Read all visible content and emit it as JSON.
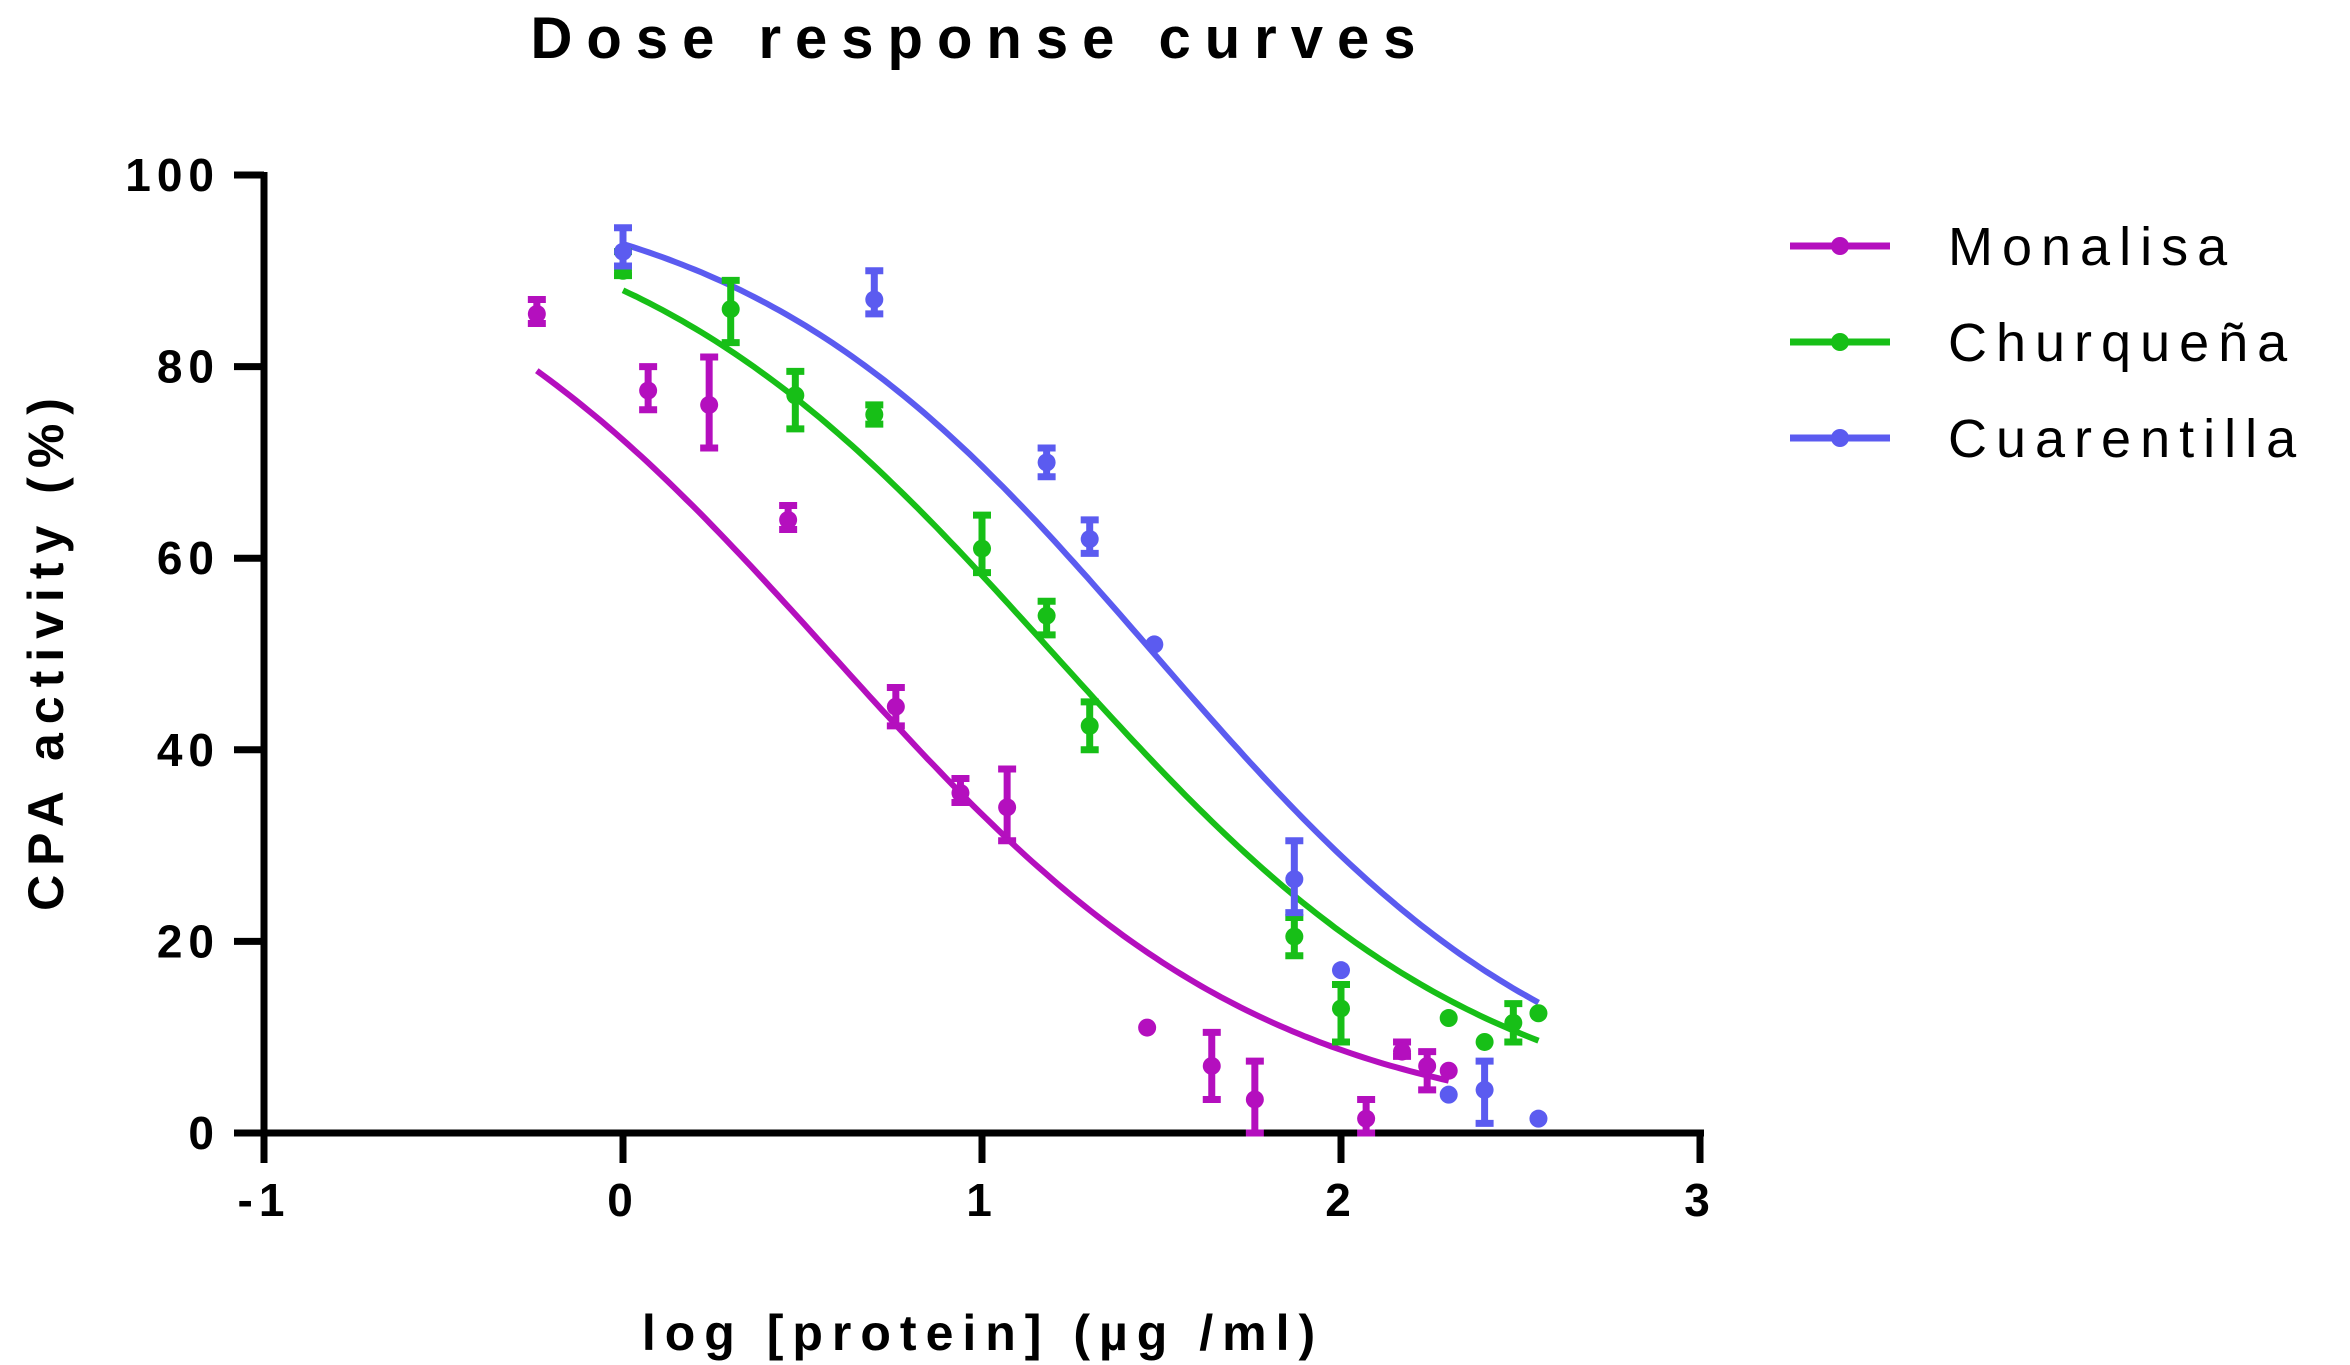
{
  "chart_data": {
    "type": "scatter",
    "title": "Dose response curves",
    "xlabel": "log [protein] (µg /ml)",
    "ylabel": "CPA activity (%)",
    "xlim": [
      -1,
      3
    ],
    "ylim": [
      0,
      100
    ],
    "xticks": [
      "-1",
      "0",
      "1",
      "2",
      "3"
    ],
    "yticks": [
      "0",
      "20",
      "40",
      "60",
      "80",
      "100"
    ],
    "grid": false,
    "legend_position": "top-right",
    "series": [
      {
        "name": "Monalisa",
        "color": "#b40fbe",
        "points": [
          {
            "x": -0.24,
            "y": 85.5,
            "lo": 84.5,
            "hi": 87
          },
          {
            "x": 0.07,
            "y": 77.5,
            "lo": 75.5,
            "hi": 80
          },
          {
            "x": 0.24,
            "y": 76,
            "lo": 71.5,
            "hi": 81
          },
          {
            "x": 0.46,
            "y": 64,
            "lo": 63,
            "hi": 65.5
          },
          {
            "x": 0.76,
            "y": 44.5,
            "lo": 42.5,
            "hi": 46.5
          },
          {
            "x": 0.94,
            "y": 35.5,
            "lo": 34.5,
            "hi": 37
          },
          {
            "x": 1.07,
            "y": 34,
            "lo": 30.5,
            "hi": 38
          },
          {
            "x": 1.46,
            "y": 11,
            "lo": 11,
            "hi": 11
          },
          {
            "x": 1.64,
            "y": 7,
            "lo": 3.5,
            "hi": 10.5
          },
          {
            "x": 1.76,
            "y": 3.5,
            "lo": 0,
            "hi": 7.5
          },
          {
            "x": 2.07,
            "y": 1.5,
            "lo": 0,
            "hi": 3.5
          },
          {
            "x": 2.17,
            "y": 8.5,
            "lo": 8,
            "hi": 9.5
          },
          {
            "x": 2.24,
            "y": 7,
            "lo": 4.5,
            "hi": 8.5
          },
          {
            "x": 2.3,
            "y": 6.5,
            "lo": 6.5,
            "hi": 6.5
          }
        ],
        "curve": {
          "top": 100,
          "bottom": 0,
          "log_ic50": 0.58,
          "hill": 0.72,
          "x_from": -0.24,
          "x_to": 2.3
        }
      },
      {
        "name": "Churqueña",
        "color": "#17bf17",
        "points": [
          {
            "x": 0.0,
            "y": 90,
            "lo": 89.5,
            "hi": 92
          },
          {
            "x": 0.3,
            "y": 86,
            "lo": 82.5,
            "hi": 89
          },
          {
            "x": 0.48,
            "y": 77,
            "lo": 73.5,
            "hi": 79.5
          },
          {
            "x": 0.7,
            "y": 75,
            "lo": 74,
            "hi": 76
          },
          {
            "x": 1.0,
            "y": 61,
            "lo": 58.5,
            "hi": 64.5
          },
          {
            "x": 1.18,
            "y": 54,
            "lo": 52,
            "hi": 55.5
          },
          {
            "x": 1.3,
            "y": 42.5,
            "lo": 40,
            "hi": 45
          },
          {
            "x": 1.87,
            "y": 20.5,
            "lo": 18.5,
            "hi": 22.5
          },
          {
            "x": 2.0,
            "y": 13,
            "lo": 9.5,
            "hi": 15.5
          },
          {
            "x": 2.3,
            "y": 12,
            "lo": 12,
            "hi": 12
          },
          {
            "x": 2.4,
            "y": 9.5,
            "lo": 9.5,
            "hi": 9.5
          },
          {
            "x": 2.48,
            "y": 11.5,
            "lo": 9.5,
            "hi": 13.5
          },
          {
            "x": 2.55,
            "y": 12.5,
            "lo": 12.5,
            "hi": 12.5
          }
        ],
        "curve": {
          "top": 100,
          "bottom": 0,
          "log_ic50": 1.2,
          "hill": 0.72,
          "x_from": 0.0,
          "x_to": 2.55
        }
      },
      {
        "name": "Cuarentilla",
        "color": "#5b5bf0",
        "points": [
          {
            "x": 0.0,
            "y": 92,
            "lo": 90.5,
            "hi": 94.5
          },
          {
            "x": 0.7,
            "y": 87,
            "lo": 85.5,
            "hi": 90
          },
          {
            "x": 1.18,
            "y": 70,
            "lo": 68.5,
            "hi": 71.5
          },
          {
            "x": 1.3,
            "y": 62,
            "lo": 60.5,
            "hi": 64
          },
          {
            "x": 1.48,
            "y": 51,
            "lo": 51,
            "hi": 51
          },
          {
            "x": 1.87,
            "y": 26.5,
            "lo": 23,
            "hi": 30.5
          },
          {
            "x": 2.0,
            "y": 17,
            "lo": 17,
            "hi": 17
          },
          {
            "x": 2.3,
            "y": 4,
            "lo": 4,
            "hi": 4
          },
          {
            "x": 2.4,
            "y": 4.5,
            "lo": 1,
            "hi": 7.5
          },
          {
            "x": 2.55,
            "y": 1.5,
            "lo": 1.5,
            "hi": 1.5
          }
        ],
        "curve": {
          "top": 100,
          "bottom": 0,
          "log_ic50": 1.48,
          "hill": 0.75,
          "x_from": 0.0,
          "x_to": 2.55
        }
      }
    ]
  }
}
